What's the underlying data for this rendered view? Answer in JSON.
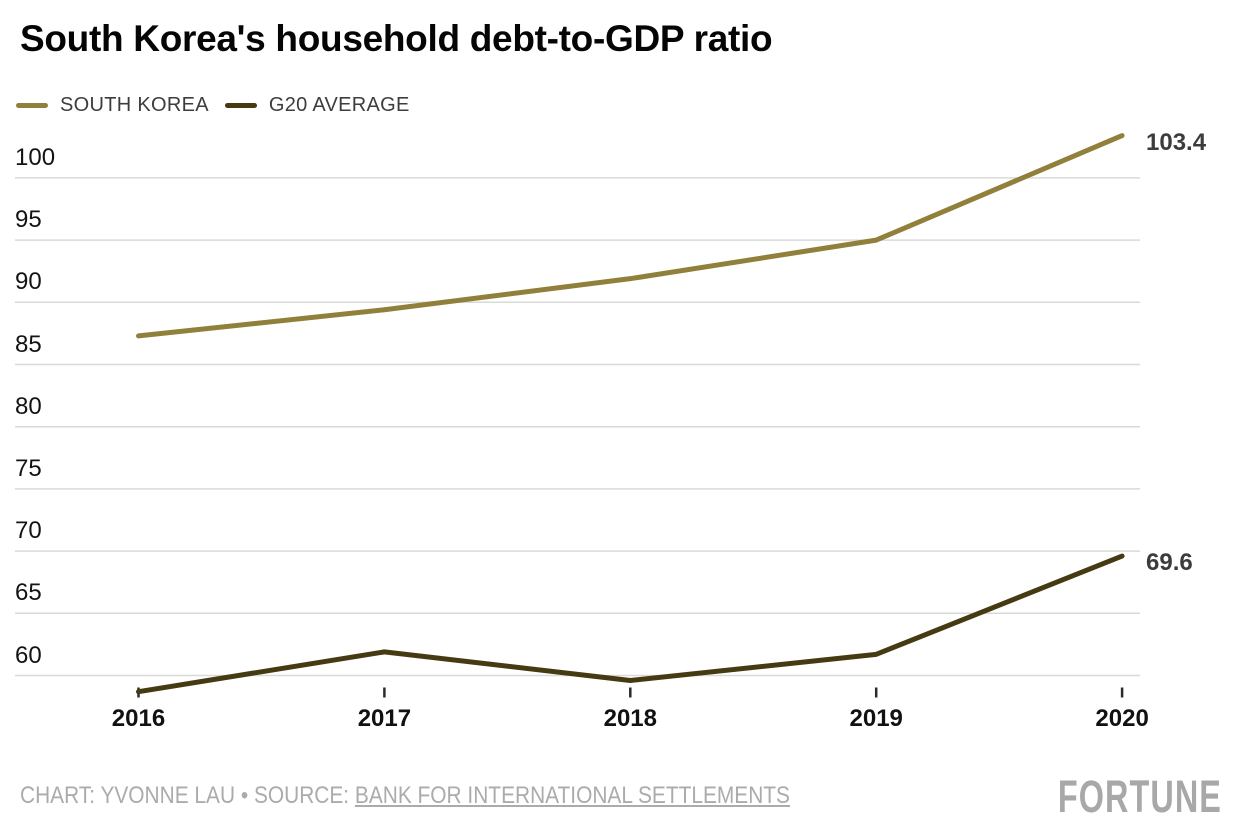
{
  "header": {
    "title": "South Korea's household debt-to-GDP ratio"
  },
  "chart_data": {
    "type": "line",
    "categories": [
      "2016",
      "2017",
      "2018",
      "2019",
      "2020"
    ],
    "series": [
      {
        "name": "SOUTH KOREA",
        "color": "#91803B",
        "values": [
          87.3,
          89.4,
          91.9,
          95.0,
          103.4
        ],
        "end_label": "103.4"
      },
      {
        "name": "G20 AVERAGE",
        "color": "#453A12",
        "values": [
          58.7,
          61.9,
          59.6,
          61.7,
          69.6
        ],
        "end_label": "69.6"
      }
    ],
    "yticks": [
      60,
      65,
      70,
      75,
      80,
      85,
      90,
      95,
      100
    ],
    "ylim": [
      58.2,
      103.6
    ],
    "grid": "horizontal-only",
    "gridline_color": "#d9d9d9",
    "tick_color": "#2b2b2b",
    "legend_position": "top-left",
    "title": "South Korea's household debt-to-GDP ratio",
    "xlabel": "",
    "ylabel": ""
  },
  "footer": {
    "credit_prefix": "CHART: YVONNE LAU • SOURCE: ",
    "source_link": "BANK FOR INTERNATIONAL SETTLEMENTS",
    "brand": "FORTUNE"
  }
}
